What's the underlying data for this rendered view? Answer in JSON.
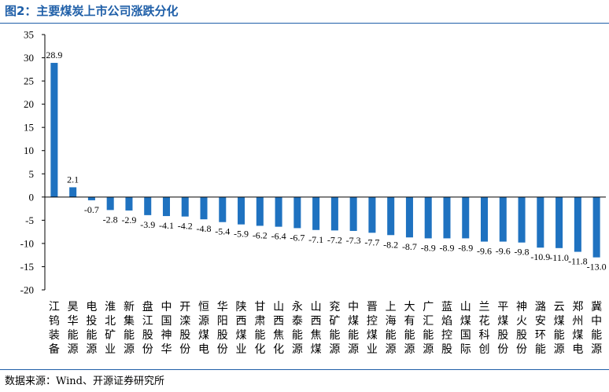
{
  "figure": {
    "title": "图2：主要煤炭上市公司涨跌分化",
    "source": "数据来源：Wind、开源证券研究所"
  },
  "colors": {
    "bar": "#1f72c0",
    "title": "#1f5fa8",
    "axis": "#000000"
  },
  "chart_data": {
    "type": "bar",
    "title": "",
    "xlabel": "",
    "ylabel": "",
    "ylim": [
      -20,
      35
    ],
    "yticks": [
      35,
      30,
      25,
      20,
      15,
      10,
      5,
      0,
      -5,
      -10,
      -15,
      -20
    ],
    "grid": false,
    "legend": "none",
    "categories": [
      "江钨装备",
      "昊华能源",
      "电投能源",
      "淮北矿业",
      "新集能源",
      "盘江股份",
      "中国神华",
      "开滦股份",
      "恒源煤电",
      "华阳股份",
      "陕西煤业",
      "甘肃能化",
      "山西焦化",
      "永泰能源",
      "山西焦煤",
      "兖矿能源",
      "中煤能源",
      "晋控煤业",
      "上海能源",
      "大有能源",
      "广汇能源",
      "蓝焰控股",
      "山煤国际",
      "兰花科创",
      "平煤股份",
      "神火股份",
      "潞安环能",
      "云煤能源",
      "郑州煤电",
      "冀中能源"
    ],
    "values": [
      28.9,
      2.1,
      -0.7,
      -2.8,
      -2.9,
      -3.9,
      -4.1,
      -4.2,
      -4.8,
      -5.4,
      -5.9,
      -6.2,
      -6.4,
      -6.7,
      -7.1,
      -7.2,
      -7.3,
      -7.7,
      -8.2,
      -8.7,
      -8.9,
      -8.9,
      -8.9,
      -9.6,
      -9.6,
      -9.8,
      -10.9,
      -11.0,
      -11.8,
      -13.0
    ],
    "value_labels": [
      "28.9",
      "2.1",
      "-0.7",
      "-2.8",
      "-2.9",
      "-3.9",
      "-4.1",
      "-4.2",
      "-4.8",
      "-5.4",
      "-5.9",
      "-6.2",
      "-6.4",
      "-6.7",
      "-7.1",
      "-7.2",
      "-7.3",
      "-7.7",
      "-8.2",
      "-8.7",
      "-8.9",
      "-8.9",
      "-8.9",
      "-9.6",
      "-9.6",
      "-9.8",
      "-10.9",
      "-11.0",
      "-11.8",
      "-13.0"
    ]
  }
}
